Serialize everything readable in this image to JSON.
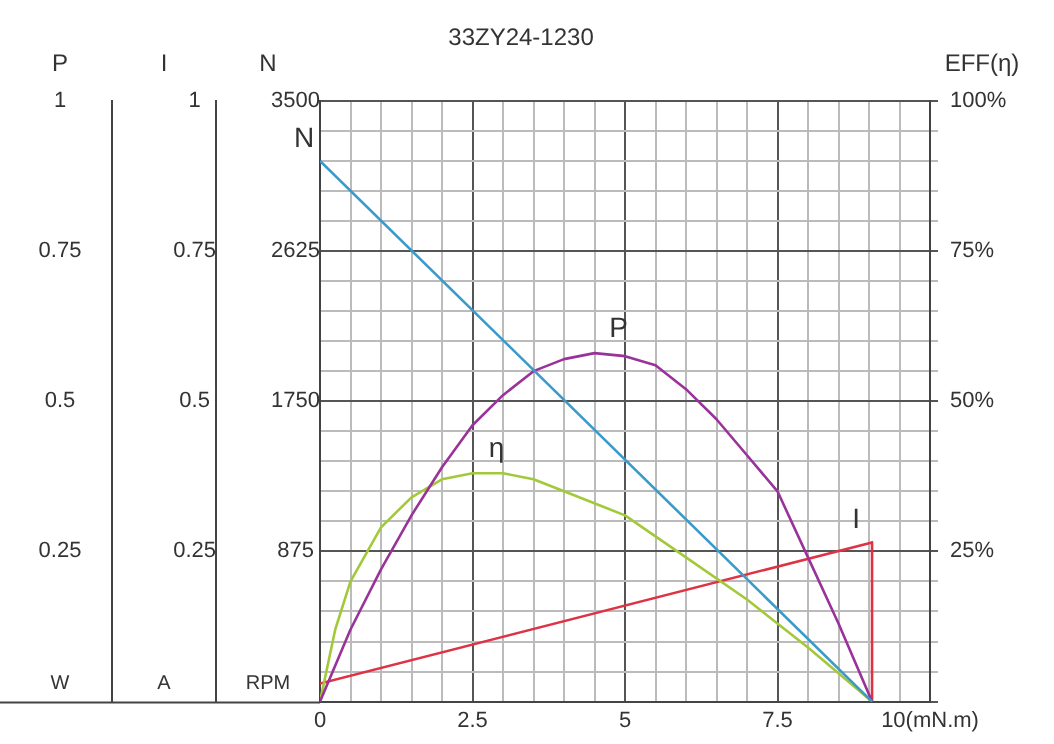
{
  "chart_data": {
    "type": "line",
    "title": "33ZY24-1230",
    "ylabel": "N",
    "y2label": "EFF(η)",
    "y3label": "P",
    "annotations": [
      "I",
      "W",
      "A",
      "RPM",
      "0.25",
      "0.5",
      "0.75",
      "1"
    ],
    "xlim": [
      0,
      10
    ],
    "xticks": [
      0,
      {
        "value": 0.5,
        "label": null
      },
      {
        "value": 1,
        "label": null
      },
      {
        "value": 1.5,
        "label": null
      },
      {
        "value": 2,
        "label": null
      },
      2.5,
      {
        "value": 3,
        "label": null
      },
      {
        "value": 3.5,
        "label": null
      },
      {
        "value": 4,
        "label": null
      },
      {
        "value": 4.5,
        "label": null
      },
      5,
      {
        "value": 5.5,
        "label": null
      },
      {
        "value": 6,
        "label": null
      },
      {
        "value": 6.5,
        "label": null
      },
      {
        "value": 7,
        "label": null
      },
      7.5,
      {
        "value": 8,
        "label": null
      },
      {
        "value": 8.5,
        "label": null
      },
      {
        "value": 9,
        "label": null
      },
      {
        "value": 9.5,
        "label": null
      },
      {
        "value": 10,
        "label": "10(mN.m)"
      }
    ],
    "ylim": [
      0,
      3500
    ],
    "yticks": [
      875,
      1750,
      2625,
      3500
    ],
    "y2lim": [
      0,
      100
    ],
    "y2ticks": [
      {
        "value": 0,
        "label": null
      },
      {
        "value": 5,
        "label": null
      },
      {
        "value": 10,
        "label": null
      },
      {
        "value": 15,
        "label": null
      },
      {
        "value": 20,
        "label": null
      },
      {
        "value": 25,
        "label": "25%"
      },
      {
        "value": 30,
        "label": null
      },
      {
        "value": 35,
        "label": null
      },
      {
        "value": 40,
        "label": null
      },
      {
        "value": 45,
        "label": null
      },
      {
        "value": 50,
        "label": "50%"
      },
      {
        "value": 55,
        "label": null
      },
      {
        "value": 60,
        "label": null
      },
      {
        "value": 65,
        "label": null
      },
      {
        "value": 70,
        "label": null
      },
      {
        "value": 75,
        "label": "75%"
      },
      {
        "value": 80,
        "label": null
      },
      {
        "value": 85,
        "label": null
      },
      {
        "value": 90,
        "label": null
      },
      {
        "value": 95,
        "label": null
      },
      {
        "value": 100,
        "label": "100%"
      }
    ],
    "y3lim": [
      0,
      1
    ],
    "y3ticks": [
      0.25,
      0.5,
      0.75,
      1
    ],
    "grid": true,
    "legend": false,
    "marker": "none",
    "line_style": "solid",
    "series": [
      {
        "name": "N",
        "type": "line",
        "color": "#3a9ac9",
        "x": [
          0,
          9.05
        ],
        "values": [
          3150,
          0
        ]
      },
      {
        "name": "P",
        "type": "line",
        "axis": "y3",
        "color": "#993399",
        "x": [
          0,
          0.5,
          1,
          1.5,
          2,
          2.5,
          3,
          3.5,
          4,
          4.5,
          5,
          5.5,
          6,
          6.5,
          7,
          7.5,
          8,
          8.5,
          9.05
        ],
        "values": [
          0,
          0.12,
          0.22,
          0.31,
          0.39,
          0.46,
          0.51,
          0.55,
          0.57,
          0.58,
          0.575,
          0.56,
          0.52,
          0.47,
          0.41,
          0.35,
          0.24,
          0.13,
          0
        ]
      },
      {
        "name": "η",
        "type": "line",
        "axis": "y2",
        "color": "#a3c93a",
        "x": [
          0,
          0.25,
          0.5,
          1,
          1.5,
          2,
          2.5,
          3,
          3.5,
          4,
          5,
          6,
          7,
          8,
          9.05
        ],
        "values": [
          0,
          12,
          20,
          29,
          34,
          37,
          38,
          38,
          37,
          35,
          31,
          24,
          17,
          9,
          0
        ]
      },
      {
        "name": "I",
        "type": "line",
        "axis": "y3",
        "color": "#dd3344",
        "x": [
          0,
          9.05,
          9.05
        ],
        "values": [
          0.03,
          0.265,
          0
        ]
      }
    ]
  }
}
